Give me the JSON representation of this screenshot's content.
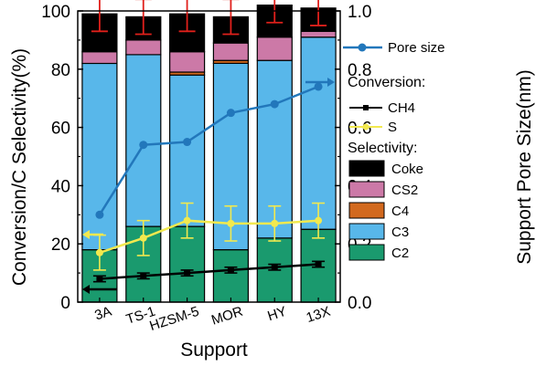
{
  "chart_data": {
    "type": "bar",
    "stacked": true,
    "categories": [
      "3A",
      "TS-1",
      "HZSM-5",
      "MOR",
      "HY",
      "13X"
    ],
    "xlabel": "Support",
    "ylabel": "Conversion/C Selectivity(%)",
    "y2label": "Support Pore Size(nm)",
    "ylim": [
      0,
      100
    ],
    "y2lim": [
      0.0,
      1.0
    ],
    "yticks": [
      "0",
      "20",
      "40",
      "60",
      "80",
      "100"
    ],
    "y2ticks": [
      "0.0",
      "0.2",
      "0.4",
      "0.6",
      "0.8",
      "1.0"
    ],
    "series": [
      {
        "name": "C2",
        "color": "#1a9a6e",
        "values": [
          18,
          26,
          26,
          18,
          22,
          25
        ]
      },
      {
        "name": "C3",
        "color": "#58b7ea",
        "values": [
          64,
          59,
          52,
          64,
          61,
          66
        ]
      },
      {
        "name": "C4",
        "color": "#d2691e",
        "values": [
          0,
          0,
          1,
          1,
          0,
          0
        ]
      },
      {
        "name": "CS2",
        "color": "#cc79a7",
        "values": [
          4,
          5,
          7,
          6,
          8,
          2
        ]
      },
      {
        "name": "Coke",
        "color": "#000000",
        "values": [
          13,
          8,
          13,
          9,
          11,
          8
        ]
      }
    ],
    "total_error": [
      6,
      6,
      6,
      6,
      6,
      6
    ],
    "lines": [
      {
        "name": "Pore size",
        "axis": "right",
        "color": "#2277bb",
        "marker": "circle",
        "values": [
          0.3,
          0.54,
          0.55,
          0.65,
          0.68,
          0.74
        ]
      },
      {
        "name": "CH4",
        "axis": "left",
        "color": "#000000",
        "marker": "square",
        "values": [
          8,
          9,
          10,
          11,
          12,
          13
        ],
        "error": [
          1,
          1,
          1,
          1,
          1,
          1
        ]
      },
      {
        "name": "S",
        "axis": "left",
        "color": "#f2e94e",
        "marker": "circle",
        "values": [
          17,
          22,
          28,
          27,
          27,
          28
        ],
        "error": [
          6,
          6,
          6,
          6,
          6,
          6
        ]
      }
    ],
    "legend": {
      "position": "right",
      "headers": [
        "Conversion:",
        "Selectivity:"
      ]
    }
  }
}
